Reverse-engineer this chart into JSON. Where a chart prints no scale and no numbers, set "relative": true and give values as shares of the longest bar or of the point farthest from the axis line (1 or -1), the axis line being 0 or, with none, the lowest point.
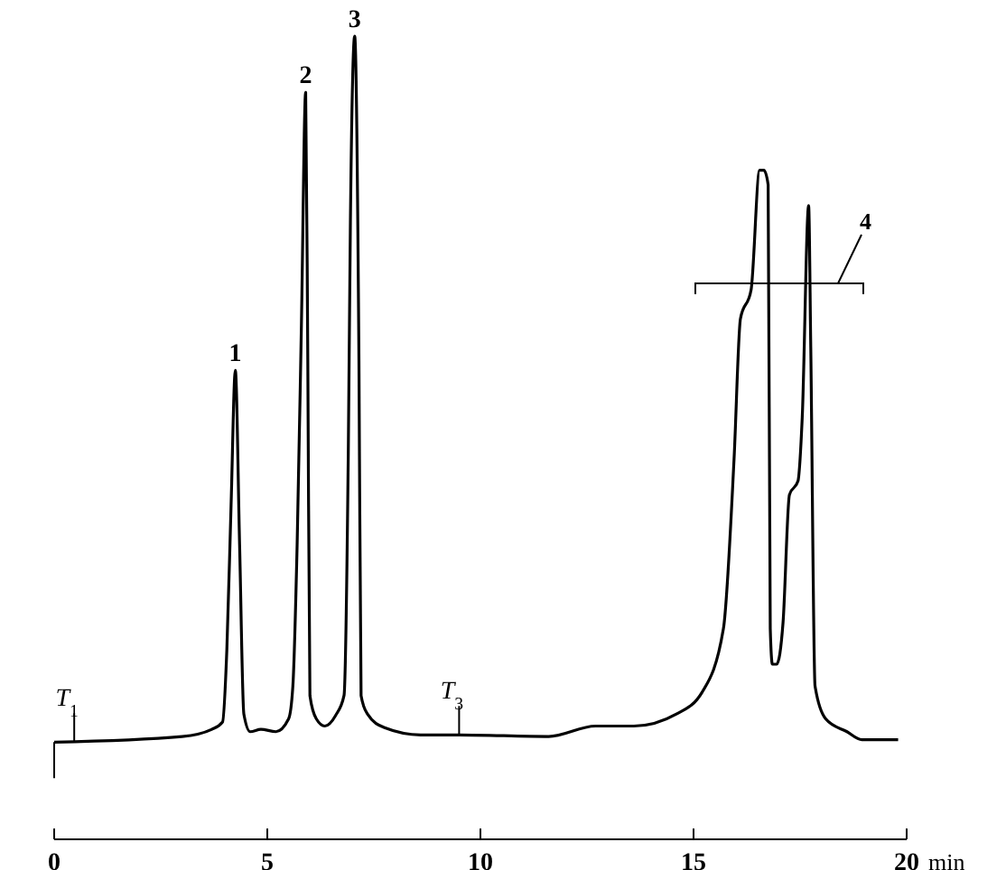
{
  "chart_data": {
    "type": "line",
    "relative": true,
    "xlabel": "min",
    "xlim": [
      0,
      20
    ],
    "xticks": [
      0,
      5,
      10,
      15,
      20
    ],
    "line_style": "solid",
    "series": [
      {
        "color": "#000000",
        "x": [
          0,
          3.0,
          3.7,
          3.95,
          4.05,
          4.15,
          4.25,
          4.35,
          4.45,
          4.6,
          4.85,
          5.2,
          5.5,
          5.6,
          5.7,
          5.8,
          5.9,
          5.95,
          6.0,
          6.15,
          6.35,
          6.6,
          6.8,
          6.9,
          6.95,
          7.05,
          7.15,
          7.2,
          7.35,
          7.75,
          8.6,
          9.5,
          11.6,
          12.7,
          13.6,
          14.6,
          15.2,
          15.7,
          15.95,
          16.1,
          16.35,
          16.55,
          16.65,
          16.75,
          16.8,
          16.85,
          16.95,
          17.1,
          17.25,
          17.45,
          17.55,
          17.7,
          17.75,
          17.85,
          18.1,
          18.6,
          18.95,
          19.8
        ],
        "values": [
          0.121,
          0.128,
          0.137,
          0.146,
          0.235,
          0.416,
          0.584,
          0.367,
          0.156,
          0.134,
          0.137,
          0.134,
          0.15,
          0.191,
          0.367,
          0.64,
          0.93,
          0.596,
          0.179,
          0.15,
          0.141,
          0.154,
          0.179,
          0.481,
          0.771,
          1.0,
          0.596,
          0.179,
          0.156,
          0.139,
          0.13,
          0.13,
          0.128,
          0.141,
          0.141,
          0.156,
          0.183,
          0.262,
          0.473,
          0.648,
          0.684,
          0.833,
          0.833,
          0.815,
          0.262,
          0.218,
          0.218,
          0.27,
          0.429,
          0.446,
          0.525,
          0.789,
          0.613,
          0.191,
          0.15,
          0.134,
          0.124,
          0.124
        ]
      }
    ],
    "annotations": [
      {
        "text": "1",
        "x": 4.25,
        "y": 0.584
      },
      {
        "text": "2",
        "x": 5.9,
        "y": 0.93
      },
      {
        "text": "3",
        "x": 7.05,
        "y": 1.0
      },
      {
        "text": "T$_{1}$",
        "x": 0.47,
        "y": 0.121
      },
      {
        "text": "T$_{3}$",
        "x": 9.5,
        "y": 0.13
      },
      "4"
    ]
  }
}
